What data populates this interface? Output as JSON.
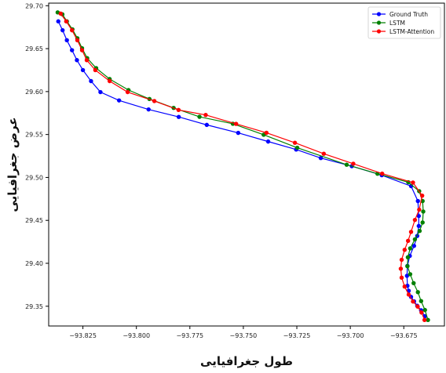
{
  "chart_data": {
    "type": "line",
    "xlabel": "طول جغرافیایی",
    "ylabel": "عرض جغرافیایی",
    "xlim": [
      -93.841,
      -93.656
    ],
    "ylim": [
      29.327,
      29.703
    ],
    "xticks": [
      -93.825,
      -93.8,
      -93.775,
      -93.75,
      -93.725,
      -93.7,
      -93.675
    ],
    "xtick_labels": [
      "−93.825",
      "−93.800",
      "−93.775",
      "−93.750",
      "−93.725",
      "−93.700",
      "−93.675"
    ],
    "yticks": [
      29.35,
      29.4,
      29.45,
      29.5,
      29.55,
      29.6,
      29.65,
      29.7
    ],
    "ytick_labels": [
      "29.35",
      "29.40",
      "29.45",
      "29.50",
      "29.55",
      "29.60",
      "29.65",
      "29.70"
    ],
    "grid": false,
    "legend_position": "top-right",
    "series": [
      {
        "name": "Ground Truth",
        "color": "#0000ff",
        "x": [
          -93.8365,
          -93.8345,
          -93.8325,
          -93.8301,
          -93.8278,
          -93.825,
          -93.8212,
          -93.8168,
          -93.8081,
          -93.7943,
          -93.7802,
          -93.7671,
          -93.7524,
          -93.7384,
          -93.7253,
          -93.7138,
          -93.6993,
          -93.6853,
          -93.6716,
          -93.6684,
          -93.668,
          -93.668,
          -93.6687,
          -93.6702,
          -93.6722,
          -93.6733,
          -93.6735,
          -93.6733,
          -93.6727,
          -93.6716,
          -93.6702,
          -93.6687,
          -93.6669,
          -93.6651
        ],
        "y": [
          29.6818,
          29.6714,
          29.6598,
          29.6482,
          29.6366,
          29.625,
          29.6122,
          29.5994,
          29.5897,
          29.5792,
          29.5705,
          29.5612,
          29.5519,
          29.5418,
          29.5325,
          29.5226,
          29.5131,
          29.5026,
          29.4899,
          29.4725,
          29.4551,
          29.4435,
          29.4319,
          29.4203,
          29.4086,
          29.397,
          29.3854,
          29.3738,
          29.368,
          29.3609,
          29.3557,
          29.3505,
          29.3453,
          29.3383
        ]
      },
      {
        "name": "LSTM",
        "color": "#008000",
        "x": [
          -93.8368,
          -93.8346,
          -93.8325,
          -93.8299,
          -93.8276,
          -93.8254,
          -93.823,
          -93.8188,
          -93.8125,
          -93.8037,
          -93.7939,
          -93.7826,
          -93.7705,
          -93.7549,
          -93.7405,
          -93.7248,
          -93.7017,
          -93.6873,
          -93.6729,
          -93.6678,
          -93.6662,
          -93.6659,
          -93.6662,
          -93.6676,
          -93.6698,
          -93.672,
          -93.6731,
          -93.6733,
          -93.672,
          -93.6704,
          -93.6684,
          -93.6669,
          -93.6651,
          -93.6637
        ],
        "y": [
          29.6922,
          29.69,
          29.6818,
          29.6725,
          29.6621,
          29.6505,
          29.6389,
          29.6273,
          29.6146,
          29.6018,
          29.5914,
          29.581,
          29.5706,
          29.5625,
          29.5497,
          29.5346,
          29.5148,
          29.5043,
          29.4944,
          29.484,
          29.4725,
          29.4603,
          29.4475,
          29.4377,
          29.4279,
          29.4174,
          29.407,
          29.3966,
          29.3873,
          29.3769,
          29.3664,
          29.356,
          29.3456,
          29.334
        ]
      },
      {
        "name": "LSTM-Attention",
        "color": "#ff0000",
        "x": [
          -93.8354,
          -93.8328,
          -93.8301,
          -93.8276,
          -93.8254,
          -93.8232,
          -93.8192,
          -93.8125,
          -93.8041,
          -93.7916,
          -93.7803,
          -93.7676,
          -93.7534,
          -93.7392,
          -93.7259,
          -93.7124,
          -93.6986,
          -93.6851,
          -93.6707,
          -93.6664,
          -93.6678,
          -93.6698,
          -93.6716,
          -93.673,
          -93.6746,
          -93.676,
          -93.6764,
          -93.676,
          -93.6746,
          -93.6727,
          -93.6707,
          -93.6685,
          -93.6667,
          -93.6653
        ],
        "y": [
          29.6908,
          29.6818,
          29.6714,
          29.6598,
          29.6482,
          29.6366,
          29.625,
          29.6122,
          29.5994,
          29.589,
          29.5786,
          29.5728,
          29.5624,
          29.552,
          29.5404,
          29.5276,
          29.516,
          29.5044,
          29.494,
          29.4788,
          29.4625,
          29.4505,
          29.4366,
          29.4262,
          29.4157,
          29.4041,
          29.3937,
          29.3833,
          29.3729,
          29.3636,
          29.3555,
          29.3496,
          29.3427,
          29.334
        ]
      }
    ]
  }
}
